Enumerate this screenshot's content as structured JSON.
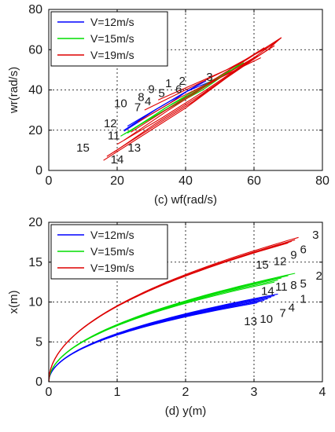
{
  "chart_data": [
    {
      "type": "line",
      "panel_label": "(c)",
      "xlabel": "wf(rad/s)",
      "ylabel": "wr(rad/s)",
      "xlim": [
        0,
        80
      ],
      "ylim": [
        0,
        80
      ],
      "xticks": [
        0,
        20,
        40,
        60,
        80
      ],
      "yticks": [
        0,
        20,
        40,
        60,
        80
      ],
      "grid": "dotted",
      "legend_position": "top-left",
      "series": [
        {
          "name": "V=12m/s",
          "color": "#0000ff",
          "lines": [
            [
              [
                22,
                20
              ],
              [
                30,
                29
              ],
              [
                38,
                37
              ],
              [
                45,
                44
              ]
            ],
            [
              [
                23,
                22
              ],
              [
                31,
                30
              ],
              [
                39,
                38
              ],
              [
                46,
                44.5
              ]
            ],
            [
              [
                22,
                19.5
              ],
              [
                29,
                27
              ],
              [
                35,
                33
              ],
              [
                41,
                40
              ]
            ],
            [
              [
                23,
                21
              ],
              [
                32,
                31
              ],
              [
                40,
                39
              ],
              [
                47,
                44
              ]
            ]
          ]
        },
        {
          "name": "V=15m/s",
          "color": "#00dd00",
          "lines": [
            [
              [
                22,
                18
              ],
              [
                33,
                29
              ],
              [
                45,
                40
              ],
              [
                56,
                53
              ]
            ],
            [
              [
                23,
                18.5
              ],
              [
                34,
                31
              ],
              [
                46,
                42
              ],
              [
                57,
                53.5
              ]
            ],
            [
              [
                21,
                17
              ],
              [
                31,
                27
              ],
              [
                43,
                39
              ],
              [
                53,
                50
              ]
            ],
            [
              [
                24,
                20
              ],
              [
                36,
                33
              ],
              [
                48,
                45
              ],
              [
                58,
                54
              ]
            ]
          ]
        },
        {
          "name": "V=19m/s",
          "color": "#dd0000",
          "lines": [
            [
              [
                16,
                5
              ],
              [
                28,
                18
              ],
              [
                40,
                31
              ],
              [
                52,
                46
              ],
              [
                64,
                60
              ],
              [
                68,
                66
              ]
            ],
            [
              [
                17,
                7
              ],
              [
                29,
                20
              ],
              [
                42,
                34
              ],
              [
                54,
                49
              ],
              [
                66,
                62
              ]
            ],
            [
              [
                19,
                9
              ],
              [
                31,
                23
              ],
              [
                44,
                37
              ],
              [
                56,
                51
              ],
              [
                68,
                66
              ]
            ],
            [
              [
                20,
                13
              ],
              [
                33,
                26
              ],
              [
                46,
                40
              ],
              [
                59,
                55
              ]
            ],
            [
              [
                22,
                15
              ],
              [
                35,
                30
              ],
              [
                48,
                44
              ],
              [
                61,
                57
              ]
            ],
            [
              [
                24,
                19
              ],
              [
                37,
                33
              ],
              [
                50,
                47
              ],
              [
                63,
                61
              ]
            ],
            [
              [
                28,
                30
              ],
              [
                40,
                40
              ],
              [
                52,
                50
              ],
              [
                66,
                63
              ]
            ],
            [
              [
                32,
                35
              ],
              [
                44,
                44
              ],
              [
                56,
                53
              ],
              [
                68,
                66
              ]
            ],
            [
              [
                26,
                24
              ],
              [
                38,
                36
              ],
              [
                50,
                46
              ],
              [
                62,
                56
              ]
            ]
          ]
        }
      ],
      "annotations": [
        {
          "text": "1",
          "x": 35,
          "y": 43
        },
        {
          "text": "2",
          "x": 39,
          "y": 44
        },
        {
          "text": "3",
          "x": 47,
          "y": 46
        },
        {
          "text": "4",
          "x": 29,
          "y": 34
        },
        {
          "text": "5",
          "x": 33,
          "y": 38
        },
        {
          "text": "6",
          "x": 38,
          "y": 40
        },
        {
          "text": "7",
          "x": 26,
          "y": 31
        },
        {
          "text": "8",
          "x": 27,
          "y": 36
        },
        {
          "text": "9",
          "x": 30,
          "y": 40
        },
        {
          "text": "10",
          "x": 21,
          "y": 33
        },
        {
          "text": "11",
          "x": 19,
          "y": 17
        },
        {
          "text": "12",
          "x": 18,
          "y": 23
        },
        {
          "text": "13",
          "x": 25,
          "y": 11
        },
        {
          "text": "14",
          "x": 20,
          "y": 5
        },
        {
          "text": "15",
          "x": 10,
          "y": 11
        }
      ]
    },
    {
      "type": "line",
      "panel_label": "(d)",
      "xlabel": "y(m)",
      "ylabel": "x(m)",
      "xlim": [
        0,
        4
      ],
      "ylim": [
        0,
        20
      ],
      "xticks": [
        0,
        1,
        2,
        3,
        4
      ],
      "yticks": [
        0,
        5,
        10,
        15,
        20
      ],
      "grid": "dotted",
      "legend_position": "top-left",
      "series": [
        {
          "name": "V=12m/s",
          "color": "#0000ff",
          "endpoints": [
            [
              3.05,
              9.9
            ],
            [
              3.1,
              10.1
            ],
            [
              3.15,
              10.2
            ],
            [
              3.2,
              10.4
            ],
            [
              3.25,
              10.6
            ],
            [
              3.3,
              10.8
            ],
            [
              3.35,
              11.0
            ]
          ],
          "scale": 6.1
        },
        {
          "name": "V=15m/s",
          "color": "#00dd00",
          "endpoints": [
            [
              3.3,
              12.5
            ],
            [
              3.35,
              12.75
            ],
            [
              3.4,
              13.0
            ],
            [
              3.5,
              13.3
            ],
            [
              3.6,
              13.6
            ]
          ],
          "scale": 7.2
        },
        {
          "name": "V=19m/s",
          "color": "#dd0000",
          "endpoints": [
            [
              3.5,
              17.4
            ],
            [
              3.55,
              17.6
            ],
            [
              3.6,
              17.8
            ],
            [
              3.65,
              18.1
            ]
          ],
          "scale": 9.6
        }
      ],
      "annotations": [
        {
          "text": "3",
          "x": 3.9,
          "y": 18.3
        },
        {
          "text": "6",
          "x": 3.72,
          "y": 16.5
        },
        {
          "text": "9",
          "x": 3.58,
          "y": 15.8
        },
        {
          "text": "12",
          "x": 3.38,
          "y": 15.0
        },
        {
          "text": "15",
          "x": 3.12,
          "y": 14.6
        },
        {
          "text": "2",
          "x": 3.95,
          "y": 13.2
        },
        {
          "text": "5",
          "x": 3.72,
          "y": 12.2
        },
        {
          "text": "8",
          "x": 3.58,
          "y": 12.0
        },
        {
          "text": "11",
          "x": 3.4,
          "y": 11.8
        },
        {
          "text": "14",
          "x": 3.2,
          "y": 11.3
        },
        {
          "text": "1",
          "x": 3.72,
          "y": 10.3
        },
        {
          "text": "4",
          "x": 3.55,
          "y": 9.2
        },
        {
          "text": "7",
          "x": 3.42,
          "y": 8.5
        },
        {
          "text": "10",
          "x": 3.18,
          "y": 7.8
        },
        {
          "text": "13",
          "x": 2.95,
          "y": 7.5
        }
      ]
    }
  ]
}
